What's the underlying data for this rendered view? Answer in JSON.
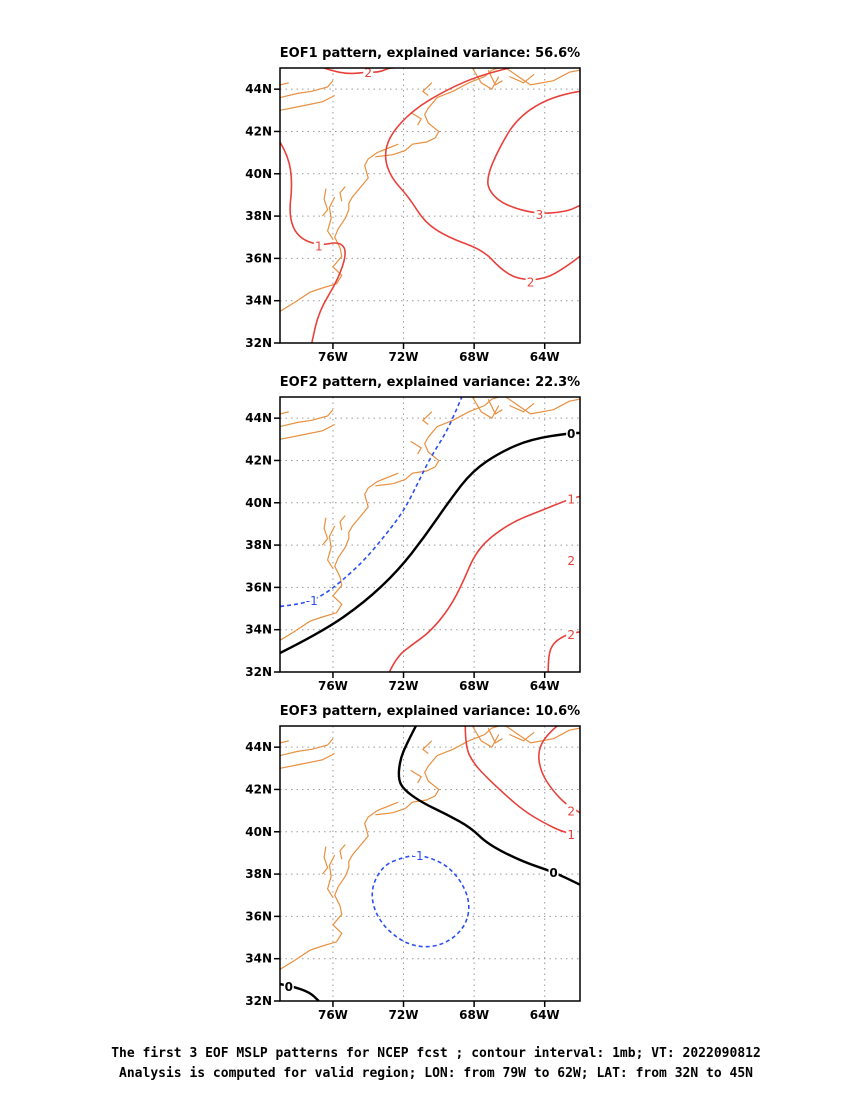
{
  "chart_data": [
    {
      "type": "contour-map",
      "title": "EOF1 pattern, explained variance: 56.6%",
      "xlim": [
        -79,
        -62
      ],
      "ylim": [
        32,
        45
      ],
      "x_ticks": [
        {
          "value": -76,
          "label": "76W"
        },
        {
          "value": -72,
          "label": "72W"
        },
        {
          "value": -68,
          "label": "68W"
        },
        {
          "value": -64,
          "label": "64W"
        }
      ],
      "y_ticks": [
        {
          "value": 32,
          "label": "32N"
        },
        {
          "value": 34,
          "label": "34N"
        },
        {
          "value": 36,
          "label": "36N"
        },
        {
          "value": 38,
          "label": "38N"
        },
        {
          "value": 40,
          "label": "40N"
        },
        {
          "value": 42,
          "label": "42N"
        },
        {
          "value": 44,
          "label": "44N"
        }
      ],
      "grid": true,
      "contours": [
        {
          "level": 1,
          "label": "1",
          "color": "#e8413c",
          "dashed": false,
          "bold": false,
          "points": [
            [
              -79,
              41.5
            ],
            [
              -78.5,
              40.8
            ],
            [
              -78.3,
              39.5
            ],
            [
              -78.5,
              38
            ],
            [
              -78,
              37
            ],
            [
              -76.8,
              36.6
            ],
            [
              -75.6,
              36.8
            ],
            [
              -75.2,
              36.3
            ],
            [
              -75.7,
              35
            ],
            [
              -76.8,
              33.5
            ],
            [
              -77.2,
              32
            ]
          ],
          "label_at": [
            -76.8,
            36.6
          ]
        },
        {
          "level": 2,
          "label": "2",
          "color": "#e8413c",
          "dashed": false,
          "bold": false,
          "points": [
            [
              -76.5,
              45
            ],
            [
              -75.5,
              44.7
            ],
            [
              -74,
              44.8
            ],
            [
              -73.4,
              44.8
            ],
            [
              -72.8,
              45
            ],
            [
              -72.5,
              45
            ]
          ],
          "label_at": [
            -74,
            44.8
          ]
        },
        {
          "level": 2,
          "label": "2",
          "color": "#e8413c",
          "dashed": false,
          "bold": false,
          "points": [
            [
              -66,
              45
            ],
            [
              -67.5,
              44.7
            ],
            [
              -69.5,
              44
            ],
            [
              -71.5,
              43
            ],
            [
              -72.8,
              41.8
            ],
            [
              -73.1,
              40.8
            ],
            [
              -72.7,
              39.8
            ],
            [
              -71.7,
              38.9
            ],
            [
              -70.8,
              37.7
            ],
            [
              -69.5,
              37
            ],
            [
              -67.5,
              36.4
            ],
            [
              -66.5,
              35.5
            ],
            [
              -65.5,
              35
            ],
            [
              -64,
              35
            ],
            [
              -62.8,
              35.6
            ],
            [
              -62,
              36.1
            ]
          ],
          "label_at": [
            -64.8,
            34.9
          ]
        },
        {
          "level": 3,
          "label": "3",
          "color": "#e8413c",
          "dashed": false,
          "bold": false,
          "points": [
            [
              -62,
              43.9
            ],
            [
              -63.5,
              43.7
            ],
            [
              -65.5,
              42.7
            ],
            [
              -66.6,
              41.2
            ],
            [
              -67.3,
              39.8
            ],
            [
              -67.1,
              39.1
            ],
            [
              -66.2,
              38.5
            ],
            [
              -64.5,
              38.1
            ],
            [
              -62.8,
              38.2
            ],
            [
              -62,
              38.5
            ]
          ],
          "label_at": [
            -64.3,
            38.1
          ]
        }
      ]
    },
    {
      "type": "contour-map",
      "title": "EOF2 pattern, explained variance: 22.3%",
      "xlim": [
        -79,
        -62
      ],
      "ylim": [
        32,
        45
      ],
      "x_ticks": [
        {
          "value": -76,
          "label": "76W"
        },
        {
          "value": -72,
          "label": "72W"
        },
        {
          "value": -68,
          "label": "68W"
        },
        {
          "value": -64,
          "label": "64W"
        }
      ],
      "y_ticks": [
        {
          "value": 32,
          "label": "32N"
        },
        {
          "value": 34,
          "label": "34N"
        },
        {
          "value": 36,
          "label": "36N"
        },
        {
          "value": 38,
          "label": "38N"
        },
        {
          "value": 40,
          "label": "40N"
        },
        {
          "value": 42,
          "label": "42N"
        },
        {
          "value": 44,
          "label": "44N"
        }
      ],
      "grid": true,
      "contours": [
        {
          "level": -1,
          "label": "-1",
          "color": "#2a4ff5",
          "dashed": true,
          "bold": false,
          "points": [
            [
              -79,
              35.1
            ],
            [
              -77.8,
              35.2
            ],
            [
              -76.6,
              35.6
            ],
            [
              -75.5,
              36.3
            ],
            [
              -74.2,
              37.3
            ],
            [
              -73,
              38.5
            ],
            [
              -72,
              39.6
            ],
            [
              -71.2,
              40.9
            ],
            [
              -70.5,
              42.1
            ],
            [
              -69.6,
              43.3
            ],
            [
              -69,
              44.4
            ],
            [
              -68.7,
              45
            ]
          ],
          "label_at": [
            -77.2,
            35.4
          ]
        },
        {
          "level": 0,
          "label": "0",
          "color": "#000000",
          "dashed": false,
          "bold": true,
          "points": [
            [
              -79,
              32.9
            ],
            [
              -76.6,
              33.9
            ],
            [
              -74.2,
              35.3
            ],
            [
              -72.3,
              36.8
            ],
            [
              -70.8,
              38.4
            ],
            [
              -69.4,
              40.1
            ],
            [
              -68.1,
              41.5
            ],
            [
              -66.5,
              42.4
            ],
            [
              -64.8,
              43
            ],
            [
              -62.5,
              43.3
            ],
            [
              -62,
              43.3
            ]
          ],
          "label_at": [
            -62.5,
            43.3
          ]
        },
        {
          "level": 1,
          "label": "1",
          "color": "#e8413c",
          "dashed": false,
          "bold": false,
          "points": [
            [
              -72.8,
              32
            ],
            [
              -72.4,
              32.7
            ],
            [
              -71.5,
              33.3
            ],
            [
              -70.5,
              33.9
            ],
            [
              -69.4,
              35
            ],
            [
              -68.6,
              36.3
            ],
            [
              -68,
              37.5
            ],
            [
              -67.2,
              38.3
            ],
            [
              -65.8,
              39.1
            ],
            [
              -64.3,
              39.6
            ],
            [
              -62.5,
              40.2
            ],
            [
              -62,
              40.3
            ]
          ],
          "label_at": [
            -62.5,
            40.2
          ]
        },
        {
          "level": 2,
          "label": "2",
          "color": "#e8413c",
          "dashed": false,
          "bold": false,
          "points": [
            [
              -63.8,
              32
            ],
            [
              -63.8,
              32.8
            ],
            [
              -63.5,
              33.4
            ],
            [
              -62.7,
              33.8
            ],
            [
              -62,
              33.9
            ]
          ],
          "label_at": [
            -62.5,
            33.8
          ]
        }
      ],
      "extra_labels": [
        {
          "text": "2",
          "at": [
            -62.5,
            37.3
          ],
          "color": "#e8413c"
        }
      ]
    },
    {
      "type": "contour-map",
      "title": "EOF3 pattern, explained variance: 10.6%",
      "xlim": [
        -79,
        -62
      ],
      "ylim": [
        32,
        45
      ],
      "x_ticks": [
        {
          "value": -76,
          "label": "76W"
        },
        {
          "value": -72,
          "label": "72W"
        },
        {
          "value": -68,
          "label": "68W"
        },
        {
          "value": -64,
          "label": "64W"
        }
      ],
      "y_ticks": [
        {
          "value": 32,
          "label": "32N"
        },
        {
          "value": 34,
          "label": "34N"
        },
        {
          "value": 36,
          "label": "36N"
        },
        {
          "value": 38,
          "label": "38N"
        },
        {
          "value": 40,
          "label": "40N"
        },
        {
          "value": 42,
          "label": "42N"
        },
        {
          "value": 44,
          "label": "44N"
        }
      ],
      "grid": true,
      "contours": [
        {
          "level": 0,
          "label": "0",
          "color": "#000000",
          "dashed": false,
          "bold": true,
          "points": [
            [
              -71.3,
              45
            ],
            [
              -71.8,
              44.2
            ],
            [
              -72.2,
              43.4
            ],
            [
              -72.3,
              42.5
            ],
            [
              -72,
              42
            ],
            [
              -71,
              41.4
            ],
            [
              -69.5,
              40.8
            ],
            [
              -68.2,
              40.2
            ],
            [
              -67.2,
              39.4
            ],
            [
              -65.3,
              38.6
            ],
            [
              -63.5,
              38.1
            ],
            [
              -62,
              37.5
            ]
          ],
          "label_at": [
            -63.5,
            38.1
          ]
        },
        {
          "level": 0,
          "label": "0",
          "color": "#000000",
          "dashed": false,
          "bold": true,
          "points": [
            [
              -79,
              32.8
            ],
            [
              -78.3,
              32.7
            ],
            [
              -77.3,
              32.4
            ],
            [
              -76.8,
              32
            ]
          ],
          "label_at": [
            -78.5,
            32.7
          ]
        },
        {
          "level": -1,
          "label": "-1",
          "color": "#2a4ff5",
          "dashed": true,
          "bold": false,
          "points": [
            [
              -71.2,
              38.9
            ],
            [
              -70,
              38.7
            ],
            [
              -68.8,
              37.8
            ],
            [
              -68.2,
              36.6
            ],
            [
              -68.5,
              35.5
            ],
            [
              -69.6,
              34.7
            ],
            [
              -71,
              34.5
            ],
            [
              -72.3,
              34.9
            ],
            [
              -73.5,
              35.9
            ],
            [
              -73.9,
              37.2
            ],
            [
              -73.2,
              38.4
            ],
            [
              -72,
              38.8
            ],
            [
              -71.2,
              38.9
            ]
          ],
          "label_at": [
            -71.2,
            38.9
          ]
        },
        {
          "level": 1,
          "label": "1",
          "color": "#e8413c",
          "dashed": false,
          "bold": false,
          "points": [
            [
              -68.5,
              45
            ],
            [
              -68.5,
              44
            ],
            [
              -68,
              43.2
            ],
            [
              -67.2,
              42.5
            ],
            [
              -66.3,
              41.8
            ],
            [
              -65.2,
              41
            ],
            [
              -64,
              40.4
            ],
            [
              -63,
              40
            ],
            [
              -62.3,
              39.9
            ]
          ],
          "label_at": [
            -62.5,
            39.9
          ]
        },
        {
          "level": 2,
          "label": "2",
          "color": "#e8413c",
          "dashed": false,
          "bold": false,
          "points": [
            [
              -63.3,
              45
            ],
            [
              -64,
              44.5
            ],
            [
              -64.4,
              43.7
            ],
            [
              -64.2,
              42.8
            ],
            [
              -63.6,
              42
            ],
            [
              -62.8,
              41.3
            ],
            [
              -62,
              40.9
            ]
          ],
          "label_at": [
            -62.5,
            41
          ]
        }
      ]
    }
  ],
  "coast_color": "#e89040",
  "caption": {
    "line1": "The first 3 EOF MSLP patterns for NCEP fcst ; contour interval: 1mb; VT: 2022090812",
    "line2": "Analysis is computed for valid region; LON: from 79W to 62W; LAT: from 32N to 45N"
  }
}
